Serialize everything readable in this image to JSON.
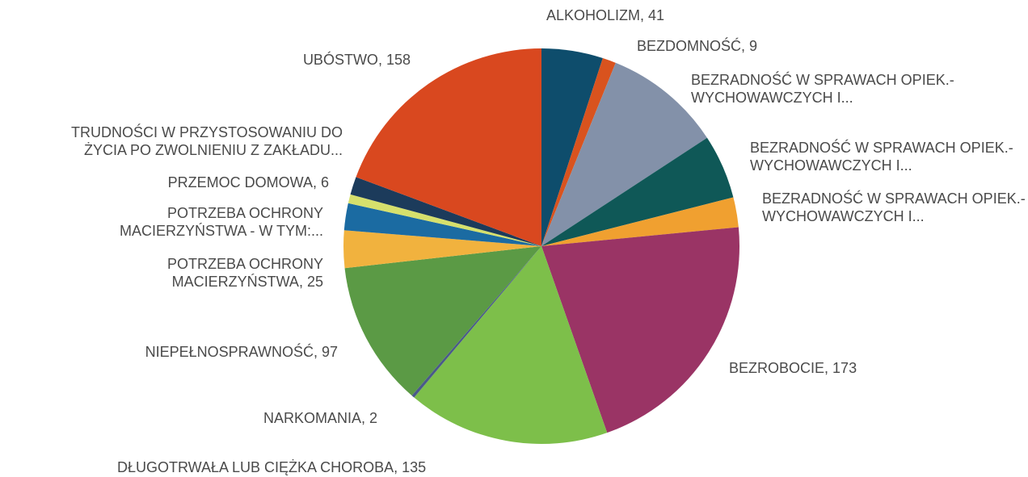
{
  "chart_data": {
    "type": "pie",
    "categories": [
      "ALKOHOLIZM",
      "BEZDOMNOŚĆ",
      "BEZRADNOŚĆ W SPRAWACH OPIEK.-WYCHOWAWCZYCH I...",
      "BEZRADNOŚĆ W SPRAWACH OPIEK.-WYCHOWAWCZYCH I...",
      "BEZRADNOŚĆ W SPRAWACH OPIEK.-WYCHOWAWCZYCH I...",
      "BEZROBOCIE",
      "DŁUGOTRWAŁA LUB CIĘŻKA CHOROBA",
      "NARKOMANIA",
      "NIEPEŁNOSPRAWNOŚĆ",
      "POTRZEBA OCHRONY MACIERZYŃSTWA",
      "POTRZEBA OCHRONY MACIERZYŃSTWA - W TYM:...",
      "PRZEMOC DOMOWA",
      "TRUDNOŚCI W PRZYSTOSOWANIU DO ŻYCIA PO ZWOLNIENIU Z ZAKŁADU...",
      "UBÓSTWO"
    ],
    "values": [
      41,
      9,
      79,
      43,
      20,
      173,
      135,
      2,
      97,
      25,
      18,
      6,
      12,
      158
    ],
    "value_labels": [
      "41",
      "9",
      null,
      null,
      null,
      "173",
      "135",
      "2",
      "97",
      "25",
      null,
      "6",
      null,
      "158"
    ],
    "colors": [
      "#0e4d6c",
      "#d9531e",
      "#8391a9",
      "#0f5857",
      "#f0a030",
      "#9a3465",
      "#7dbf4a",
      "#4a5a8a",
      "#5b9a45",
      "#f1b23e",
      "#1b6ba2",
      "#d6e06c",
      "#1c3b5b",
      "#d9481f"
    ]
  }
}
